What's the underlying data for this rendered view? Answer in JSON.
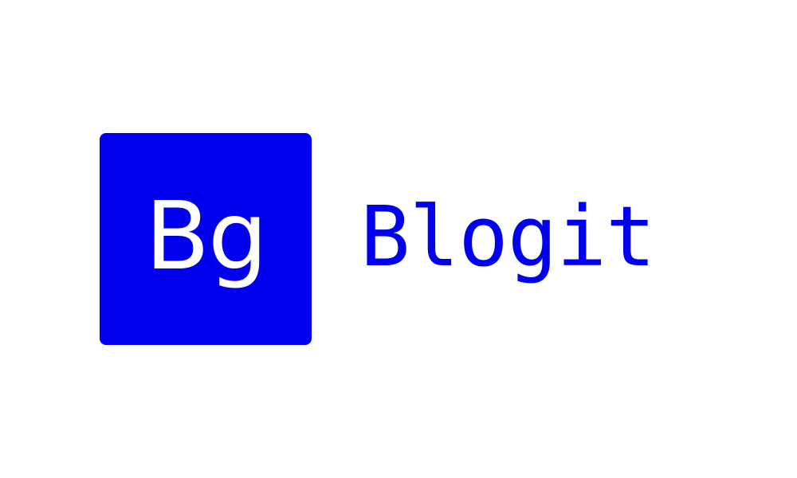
{
  "logo": {
    "mark_text": "Bg",
    "wordmark_text": "Blogit",
    "colors": {
      "brand": "#0000ee",
      "mark_text": "#ffffff",
      "background": "#ffffff"
    }
  }
}
